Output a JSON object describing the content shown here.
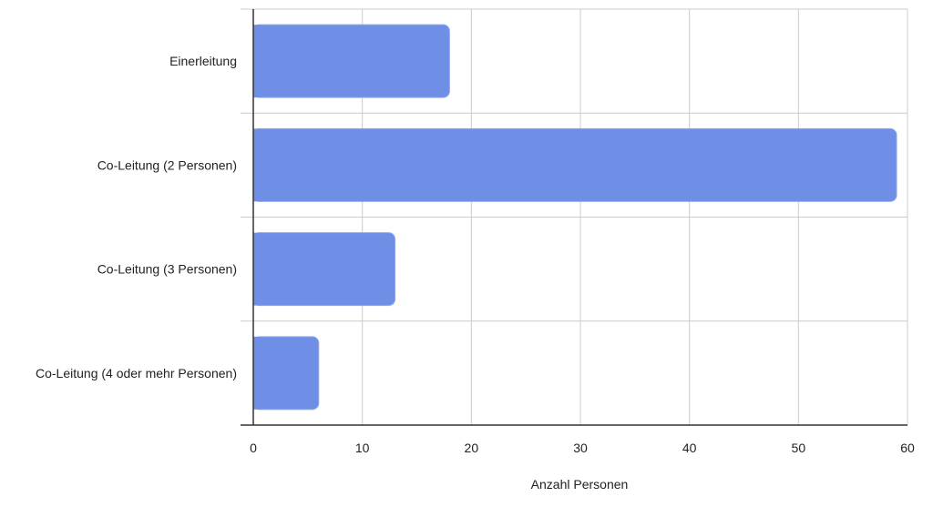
{
  "chart_data": {
    "type": "bar",
    "orientation": "horizontal",
    "categories": [
      "Einerleitung",
      "Co-Leitung (2 Personen)",
      "Co-Leitung (3 Personen)",
      "Co-Leitung (4 oder mehr Personen)"
    ],
    "series": [
      {
        "values": [
          18,
          59,
          13,
          6
        ]
      }
    ],
    "xlabel": "Anzahl Personen",
    "ylabel": "",
    "xlim": [
      0,
      60
    ],
    "xticks": [
      0,
      10,
      20,
      30,
      40,
      50,
      60
    ],
    "grid": true,
    "legend": "none",
    "bar_color": "#6f8fe6"
  }
}
